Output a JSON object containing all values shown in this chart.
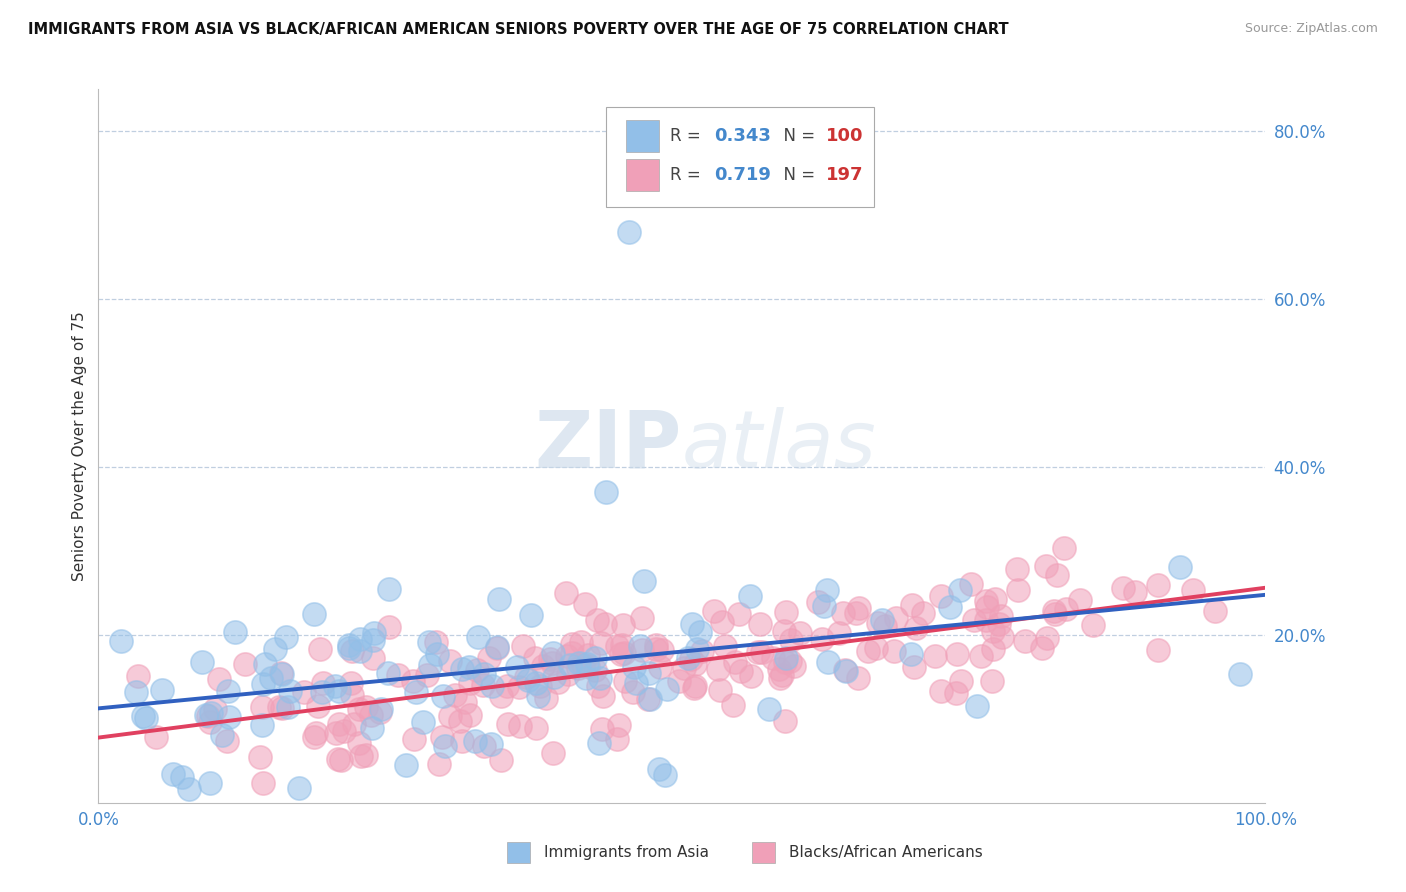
{
  "title": "IMMIGRANTS FROM ASIA VS BLACK/AFRICAN AMERICAN SENIORS POVERTY OVER THE AGE OF 75 CORRELATION CHART",
  "source": "Source: ZipAtlas.com",
  "ylabel": "Seniors Poverty Over the Age of 75",
  "xlim": [
    0.0,
    1.0
  ],
  "ylim": [
    0.0,
    0.85
  ],
  "yticks": [
    0.2,
    0.4,
    0.6,
    0.8
  ],
  "ytick_labels": [
    "20.0%",
    "40.0%",
    "60.0%",
    "80.0%"
  ],
  "xtick_labels": [
    "0.0%",
    "100.0%"
  ],
  "legend_r1": "0.343",
  "legend_n1": "100",
  "legend_r2": "0.719",
  "legend_n2": "197",
  "color_blue": "#92bfe8",
  "color_pink": "#f0a0b8",
  "color_blue_line": "#3060c0",
  "color_pink_line": "#e04060",
  "watermark_zip": "ZIP",
  "watermark_atlas": "atlas",
  "background_color": "#ffffff",
  "grid_color": "#c0cfe0",
  "seed": 42
}
